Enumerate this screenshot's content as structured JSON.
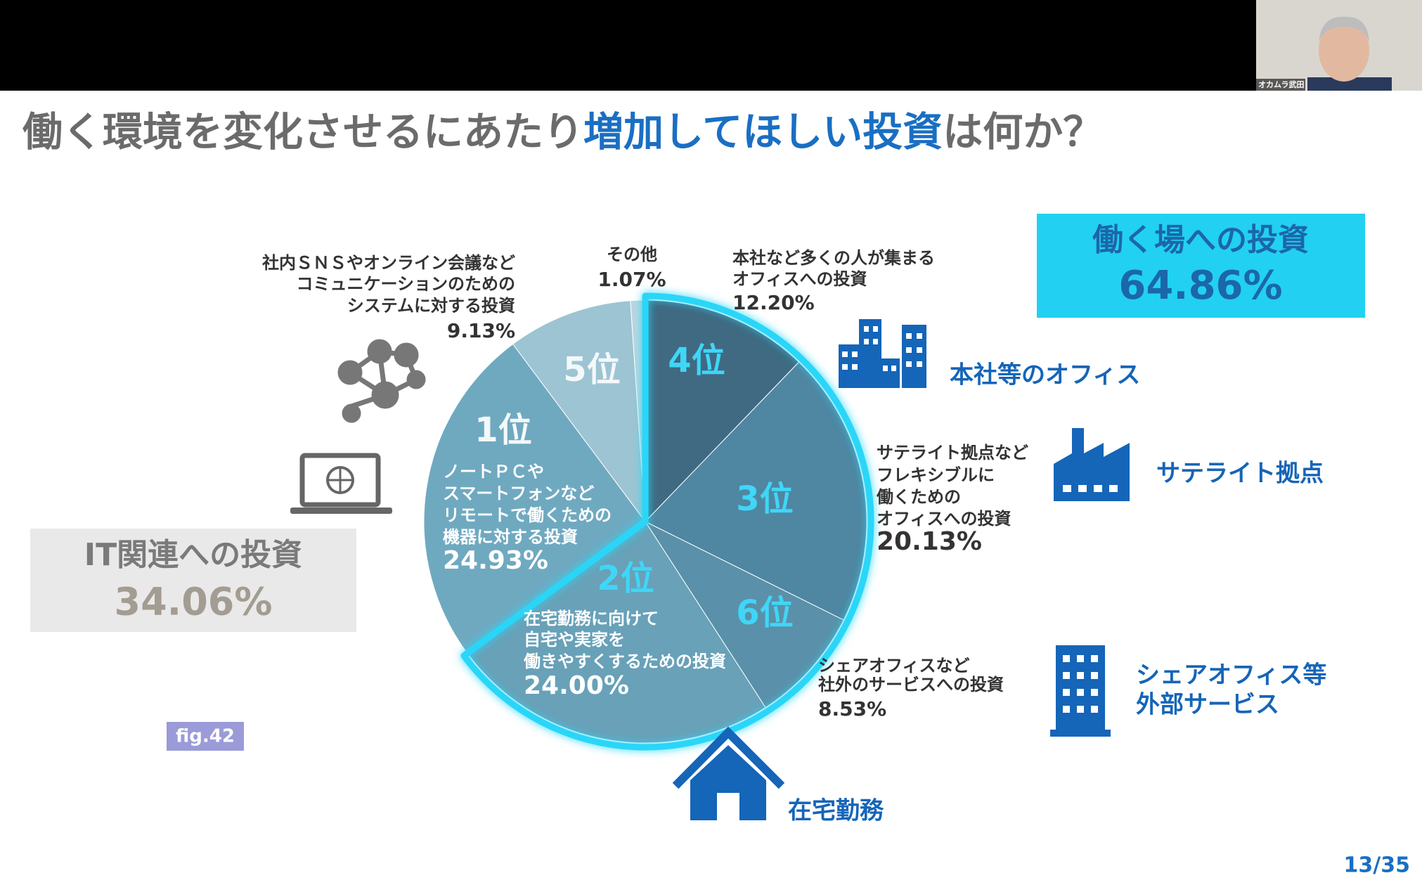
{
  "chart_data": {
    "type": "pie",
    "title": [
      "働く環境を変化させるにあたり",
      "増加してほしい投資",
      "は何か？"
    ],
    "ranks": [
      "4位",
      "3位",
      "6位",
      "2位",
      "1位",
      "5位",
      null
    ],
    "labels": [
      [
        "本社など多くの人が集まる",
        "オフィスへの投資"
      ],
      [
        "サテライト拠点など",
        "フレキシブルに",
        "働くための",
        "オフィスへの投資"
      ],
      [
        "シェアオフィスなど",
        "社外のサービスへの投資"
      ],
      [
        "在宅勤務に向けて",
        "自宅や実家を",
        "働きやすくするための投資"
      ],
      [
        "ノートＰＣや",
        "スマートフォンなど",
        "リモートで働くための",
        "機器に対する投資"
      ],
      [
        "社内ＳＮＳやオンライン会議など",
        "コミュニケーションのための",
        "システムに対する投資"
      ],
      [
        "その他"
      ]
    ],
    "values": [
      12.2,
      20.13,
      8.53,
      24.0,
      24.93,
      9.13,
      1.07
    ],
    "value_labels": [
      "12.20%",
      "20.13%",
      "8.53%",
      "24.00%",
      "24.93%",
      "9.13%",
      "1.07%"
    ],
    "colors": [
      "#3f6a82",
      "#4f86a1",
      "#5a90a9",
      "#68a1b8",
      "#6fa9c0",
      "#9dc4d2",
      "#b9d6e0"
    ],
    "groups": [
      {
        "name": "働く場への投資",
        "value": 64.86,
        "value_label": "64.86%"
      },
      {
        "name": "IT関連への投資",
        "value": 34.06,
        "value_label": "34.06%"
      }
    ],
    "icon_labels": [
      [
        "本社等のオフィス"
      ],
      [
        "サテライト拠点"
      ],
      [
        "シェアオフィス等",
        "外部サービス"
      ],
      [
        "在宅勤務"
      ]
    ]
  },
  "figure": "fig.42",
  "page": "13/35",
  "presenter": "オカムラ武田"
}
